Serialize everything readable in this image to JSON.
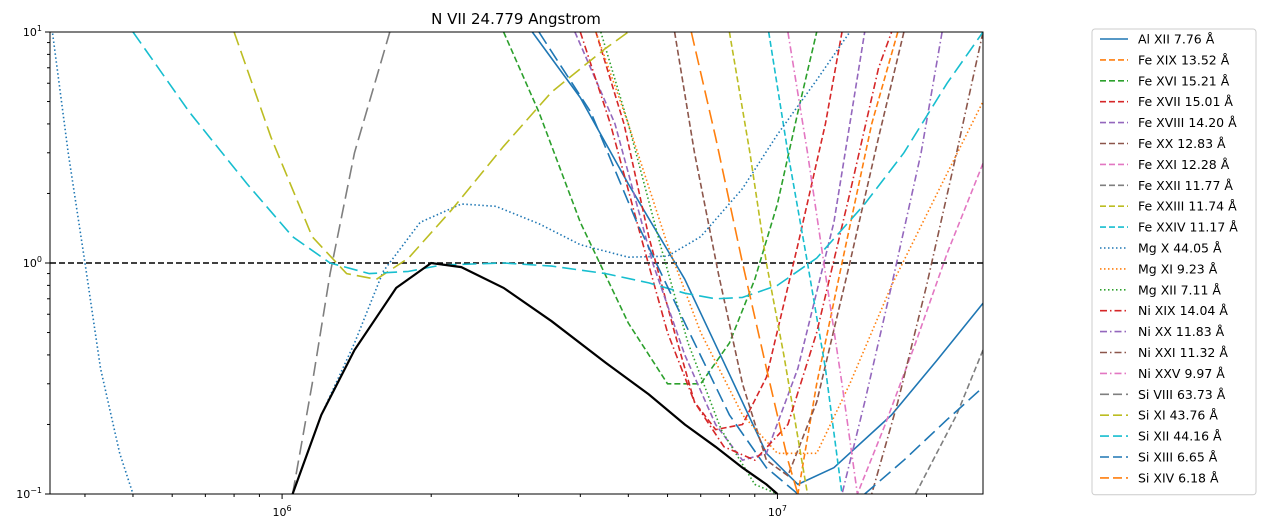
{
  "chart_data": {
    "type": "line",
    "title": "N VII 24.779 Angstrom",
    "xlabel": "",
    "ylabel": "",
    "xscale": "log",
    "yscale": "log",
    "xlim": [
      340000,
      26000000
    ],
    "ylim": [
      0.1,
      10
    ],
    "x_ticks": [
      {
        "value": 1000000,
        "base": "10",
        "exp": "6"
      },
      {
        "value": 10000000,
        "base": "10",
        "exp": "7"
      }
    ],
    "y_ticks": [
      {
        "value": 0.1,
        "base": "10",
        "exp": "−1"
      },
      {
        "value": 1,
        "base": "10",
        "exp": "0"
      },
      {
        "value": 10,
        "base": "10",
        "exp": "1"
      }
    ],
    "reference_line": {
      "y": 1,
      "color": "#000000",
      "style": "dashed"
    },
    "envelope": {
      "color": "#000000",
      "points": [
        [
          1050000,
          0.1
        ],
        [
          1200000,
          0.22
        ],
        [
          1400000,
          0.42
        ],
        [
          1700000,
          0.78
        ],
        [
          2000000,
          1.0
        ],
        [
          2300000,
          0.96
        ],
        [
          2800000,
          0.78
        ],
        [
          3500000,
          0.56
        ],
        [
          4500000,
          0.37
        ],
        [
          5500000,
          0.27
        ],
        [
          6500000,
          0.2
        ],
        [
          7500000,
          0.16
        ],
        [
          8500000,
          0.13
        ],
        [
          9500000,
          0.11
        ],
        [
          10000000,
          0.1
        ]
      ]
    },
    "legend_position": "outside-right",
    "series": [
      {
        "name": "Al XII 7.76 Å",
        "color": "#1f77b4",
        "style": "solid",
        "points": [
          [
            3200000,
            10
          ],
          [
            4000000,
            5.2
          ],
          [
            5000000,
            2.2
          ],
          [
            6500000,
            0.85
          ],
          [
            8000000,
            0.33
          ],
          [
            9500000,
            0.15
          ],
          [
            11000000,
            0.11
          ],
          [
            13000000,
            0.13
          ],
          [
            17000000,
            0.22
          ],
          [
            21000000,
            0.38
          ],
          [
            26000000,
            0.67
          ]
        ]
      },
      {
        "name": "Fe XIX 13.52 Å",
        "color": "#ff7f0e",
        "style": "dashed",
        "points": [
          [
            17500000,
            10
          ],
          [
            15500000,
            4
          ],
          [
            13500000,
            1.0
          ],
          [
            12000000,
            0.3
          ],
          [
            11000000,
            0.1
          ]
        ]
      },
      {
        "name": "Fe XVI 15.21 Å",
        "color": "#2ca02c",
        "style": "dashed",
        "points": [
          [
            2800000,
            10
          ],
          [
            3300000,
            4.5
          ],
          [
            4000000,
            1.5
          ],
          [
            5000000,
            0.55
          ],
          [
            6000000,
            0.3
          ],
          [
            7000000,
            0.3
          ],
          [
            8000000,
            0.45
          ],
          [
            9000000,
            0.85
          ],
          [
            10000000,
            1.8
          ],
          [
            11000000,
            4.5
          ],
          [
            12000000,
            10
          ]
        ]
      },
      {
        "name": "Fe XVII 15.01 Å",
        "color": "#d62728",
        "style": "dashed",
        "points": [
          [
            4300000,
            10
          ],
          [
            4900000,
            4
          ],
          [
            5500000,
            1.3
          ],
          [
            6200000,
            0.5
          ],
          [
            6800000,
            0.25
          ],
          [
            7500000,
            0.19
          ],
          [
            8500000,
            0.2
          ],
          [
            9500000,
            0.32
          ],
          [
            11000000,
            1.2
          ],
          [
            12500000,
            4
          ],
          [
            13500000,
            10
          ]
        ]
      },
      {
        "name": "Fe XVIII 14.20 Å",
        "color": "#9467bd",
        "style": "dashed",
        "points": [
          [
            3900000,
            10
          ],
          [
            4700000,
            4
          ],
          [
            5600000,
            1.0
          ],
          [
            6500000,
            0.4
          ],
          [
            7500000,
            0.2
          ],
          [
            8500000,
            0.14
          ],
          [
            9500000,
            0.15
          ],
          [
            11000000,
            0.35
          ],
          [
            13000000,
            1.5
          ],
          [
            15000000,
            10
          ]
        ]
      },
      {
        "name": "Fe XX 12.83 Å",
        "color": "#8c564b",
        "style": "dashed",
        "points": [
          [
            6200000,
            10
          ],
          [
            6800000,
            3
          ],
          [
            7600000,
            0.9
          ],
          [
            8500000,
            0.3
          ],
          [
            9500000,
            0.14
          ],
          [
            10500000,
            0.12
          ],
          [
            12000000,
            0.25
          ],
          [
            14000000,
            1.0
          ],
          [
            16000000,
            3.5
          ],
          [
            18000000,
            10
          ]
        ]
      },
      {
        "name": "Fe XXI 12.28 Å",
        "color": "#e377c2",
        "style": "dashed",
        "points": [
          [
            26000000,
            2.7
          ],
          [
            22000000,
            1.1
          ],
          [
            19000000,
            0.45
          ],
          [
            16500000,
            0.2
          ],
          [
            14500000,
            0.1
          ]
        ]
      },
      {
        "name": "Fe XXII 11.77 Å",
        "color": "#7f7f7f",
        "style": "dashed",
        "points": [
          [
            26000000,
            0.42
          ],
          [
            23000000,
            0.22
          ],
          [
            19000000,
            0.1
          ]
        ]
      },
      {
        "name": "Fe XXIII 11.74 Å",
        "color": "#bcbd22",
        "style": "dashed",
        "points": [
          [
            8000000,
            10
          ],
          [
            8800000,
            3
          ],
          [
            9500000,
            1.0
          ],
          [
            10300000,
            0.4
          ],
          [
            11500000,
            0.1
          ]
        ]
      },
      {
        "name": "Fe XXIV 11.17 Å",
        "color": "#17becf",
        "style": "dashed",
        "points": [
          [
            9600000,
            10
          ],
          [
            10500000,
            3
          ],
          [
            11500000,
            1.0
          ],
          [
            12500000,
            0.35
          ],
          [
            13500000,
            0.1
          ]
        ]
      },
      {
        "name": "Mg X 44.05 Å",
        "color": "#1f77b4",
        "style": "dotted",
        "points": [
          [
            340000,
            12
          ],
          [
            370000,
            3
          ],
          [
            400000,
            1.0
          ],
          [
            430000,
            0.35
          ],
          [
            470000,
            0.15
          ],
          [
            500000,
            0.1
          ]
        ]
      },
      {
        "name": "Mg X 44.05 Å (high-T)",
        "legend": false,
        "color": "#1f77b4",
        "style": "dotted",
        "points": [
          [
            1050000,
            0.1
          ],
          [
            1200000,
            0.22
          ],
          [
            1400000,
            0.45
          ],
          [
            1600000,
            0.92
          ],
          [
            1900000,
            1.5
          ],
          [
            2300000,
            1.8
          ],
          [
            2700000,
            1.76
          ],
          [
            3300000,
            1.48
          ],
          [
            4000000,
            1.2
          ],
          [
            5000000,
            1.06
          ],
          [
            6000000,
            1.07
          ],
          [
            7000000,
            1.3
          ],
          [
            8500000,
            2.1
          ],
          [
            10000000,
            3.6
          ],
          [
            12000000,
            6.2
          ],
          [
            14000000,
            10
          ]
        ]
      },
      {
        "name": "Mg XI 9.23 Å",
        "color": "#ff7f0e",
        "style": "dotted",
        "points": [
          [
            4300000,
            10
          ],
          [
            5000000,
            4
          ],
          [
            6000000,
            1.2
          ],
          [
            7000000,
            0.5
          ],
          [
            8500000,
            0.22
          ],
          [
            10000000,
            0.15
          ],
          [
            12000000,
            0.15
          ],
          [
            14000000,
            0.3
          ],
          [
            17000000,
            0.8
          ],
          [
            21000000,
            2
          ],
          [
            26000000,
            5
          ]
        ]
      },
      {
        "name": "Mg XII 7.11 Å",
        "color": "#2ca02c",
        "style": "dotted",
        "points": [
          [
            4400000,
            10
          ],
          [
            5000000,
            4
          ],
          [
            5800000,
            1.2
          ],
          [
            6600000,
            0.45
          ],
          [
            7700000,
            0.19
          ],
          [
            9000000,
            0.11
          ],
          [
            10000000,
            0.1
          ]
        ]
      },
      {
        "name": "Ni XIX 14.04 Å",
        "color": "#d62728",
        "style": "dashdot",
        "points": [
          [
            4000000,
            10
          ],
          [
            4600000,
            4
          ],
          [
            5300000,
            1.3
          ],
          [
            6000000,
            0.5
          ],
          [
            6800000,
            0.25
          ],
          [
            7800000,
            0.16
          ],
          [
            9000000,
            0.14
          ],
          [
            10500000,
            0.2
          ],
          [
            12000000,
            0.5
          ],
          [
            14000000,
            2
          ],
          [
            16000000,
            7
          ],
          [
            17000000,
            10
          ]
        ]
      },
      {
        "name": "Ni XX 11.83 Å",
        "color": "#9467bd",
        "style": "dashdot",
        "points": [
          [
            21500000,
            10
          ],
          [
            19500000,
            3
          ],
          [
            17000000,
            0.8
          ],
          [
            15000000,
            0.25
          ],
          [
            13500000,
            0.1
          ]
        ]
      },
      {
        "name": "Ni XXI 11.32 Å",
        "color": "#8c564b",
        "style": "dashdot",
        "points": [
          [
            26000000,
            10
          ],
          [
            23000000,
            3
          ],
          [
            20000000,
            0.8
          ],
          [
            17500000,
            0.25
          ],
          [
            15500000,
            0.1
          ]
        ]
      },
      {
        "name": "Ni XXV 9.97 Å",
        "color": "#e377c2",
        "style": "dashdot",
        "points": [
          [
            10500000,
            10
          ],
          [
            11500000,
            3
          ],
          [
            12500000,
            0.9
          ],
          [
            13500000,
            0.3
          ],
          [
            14500000,
            0.1
          ]
        ]
      },
      {
        "name": "Si VIII 63.73 Å",
        "color": "#7f7f7f",
        "style": "longdash",
        "points": [
          [
            1050000,
            0.1
          ],
          [
            1150000,
            0.3
          ],
          [
            1250000,
            0.9
          ],
          [
            1400000,
            3
          ],
          [
            1650000,
            10
          ]
        ]
      },
      {
        "name": "Si XI 43.76 Å",
        "color": "#bcbd22",
        "style": "longdash",
        "points": [
          [
            800000,
            10
          ],
          [
            950000,
            3.5
          ],
          [
            1150000,
            1.3
          ],
          [
            1350000,
            0.9
          ],
          [
            1550000,
            0.85
          ],
          [
            1800000,
            1.05
          ],
          [
            2200000,
            1.7
          ],
          [
            2800000,
            3.2
          ],
          [
            3500000,
            5.5
          ],
          [
            4500000,
            8.5
          ],
          [
            5000000,
            10
          ]
        ]
      },
      {
        "name": "Si XII 44.16 Å",
        "color": "#17becf",
        "style": "longdash",
        "points": [
          [
            500000,
            10
          ],
          [
            650000,
            4.5
          ],
          [
            850000,
            2.2
          ],
          [
            1050000,
            1.3
          ],
          [
            1250000,
            1.0
          ],
          [
            1500000,
            0.9
          ],
          [
            1800000,
            0.92
          ],
          [
            2100000,
            0.98
          ],
          [
            2800000,
            1.0
          ],
          [
            3500000,
            0.97
          ],
          [
            4500000,
            0.9
          ],
          [
            5500000,
            0.82
          ],
          [
            6500000,
            0.74
          ],
          [
            7500000,
            0.7
          ],
          [
            8500000,
            0.71
          ],
          [
            10000000,
            0.8
          ],
          [
            12000000,
            1.05
          ],
          [
            15000000,
            1.8
          ],
          [
            18000000,
            3
          ],
          [
            22000000,
            6
          ],
          [
            26000000,
            10
          ]
        ]
      },
      {
        "name": "Si XIII 6.65 Å",
        "color": "#1f77b4",
        "style": "longdash",
        "points": [
          [
            3300000,
            10
          ],
          [
            4200000,
            4.5
          ],
          [
            5200000,
            1.5
          ],
          [
            6500000,
            0.55
          ],
          [
            8000000,
            0.22
          ],
          [
            9500000,
            0.13
          ],
          [
            11000000,
            0.1
          ]
        ]
      },
      {
        "name": "Si XIII 6.65 Å (high-T)",
        "legend": false,
        "color": "#1f77b4",
        "style": "longdash",
        "points": [
          [
            15000000,
            0.1
          ],
          [
            18000000,
            0.14
          ],
          [
            22000000,
            0.21
          ],
          [
            26000000,
            0.29
          ]
        ]
      },
      {
        "name": "Si XIV 6.18 Å",
        "color": "#ff7f0e",
        "style": "longdash",
        "points": [
          [
            6700000,
            10
          ],
          [
            7500000,
            3.5
          ],
          [
            8500000,
            1.0
          ],
          [
            9500000,
            0.35
          ],
          [
            10500000,
            0.14
          ],
          [
            11000000,
            0.1
          ]
        ]
      }
    ]
  }
}
